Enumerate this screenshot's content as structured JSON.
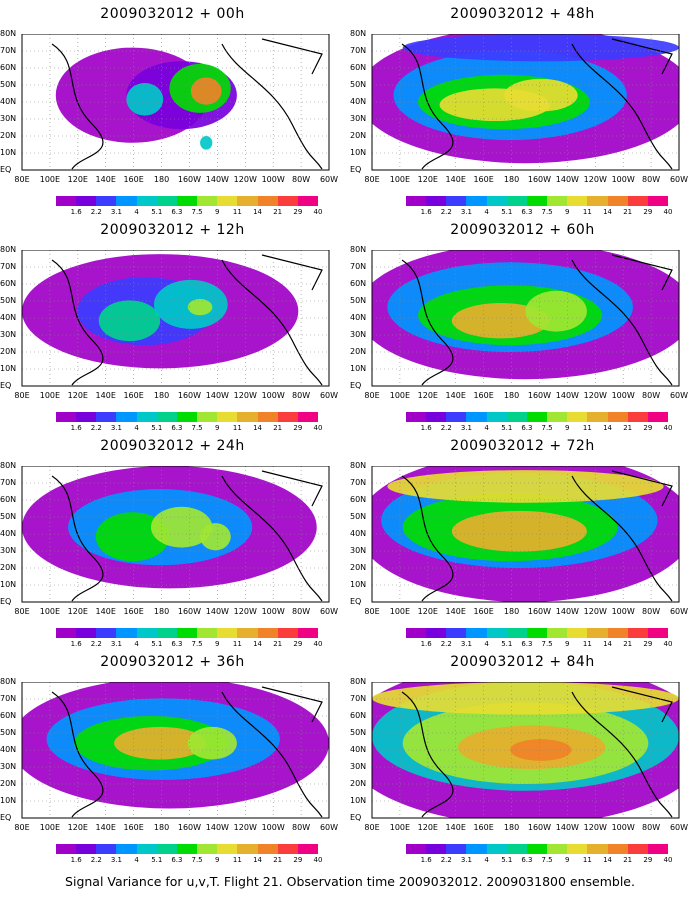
{
  "panels": [
    {
      "title": "2009032012 + 00h",
      "intensity": 0.25,
      "blobs": "p00"
    },
    {
      "title": "2009032012 + 48h",
      "intensity": 0.6,
      "blobs": "p48"
    },
    {
      "title": "2009032012 + 12h",
      "intensity": 0.4,
      "blobs": "p12"
    },
    {
      "title": "2009032012 + 60h",
      "intensity": 0.65,
      "blobs": "p60"
    },
    {
      "title": "2009032012 + 24h",
      "intensity": 0.5,
      "blobs": "p24"
    },
    {
      "title": "2009032012 + 72h",
      "intensity": 0.72,
      "blobs": "p72"
    },
    {
      "title": "2009032012 + 36h",
      "intensity": 0.58,
      "blobs": "p36"
    },
    {
      "title": "2009032012 + 84h",
      "intensity": 0.8,
      "blobs": "p84"
    }
  ],
  "x_axis_labels": [
    "80E",
    "100E",
    "120E",
    "140E",
    "160E",
    "180",
    "160W",
    "140W",
    "120W",
    "100W",
    "80W",
    "60W"
  ],
  "y_axis_labels": [
    "EQ",
    "10N",
    "20N",
    "30N",
    "40N",
    "50N",
    "60N",
    "70N",
    "80N"
  ],
  "colorbar": {
    "colors": [
      "#a000c8",
      "#7800dc",
      "#3c3cff",
      "#0096ff",
      "#00c8c8",
      "#00d28c",
      "#00dc00",
      "#a0e632",
      "#e6dc32",
      "#e6af2d",
      "#f08228",
      "#fa3c3c",
      "#f00082"
    ],
    "labels": [
      "1.6",
      "2.2",
      "3.1",
      "4",
      "5.1",
      "6.3",
      "7.5",
      "9",
      "11",
      "14",
      "21",
      "29",
      "40"
    ]
  },
  "footer": "Signal Variance for u,v,T. Flight 21. Observation time 2009032012. 2009031800 ensemble."
}
